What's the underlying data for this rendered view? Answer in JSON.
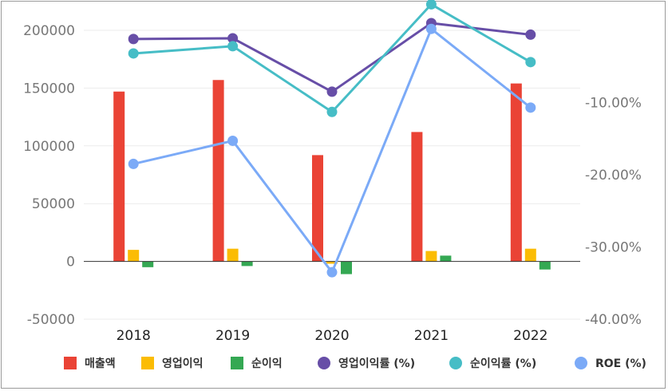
{
  "chart_data": {
    "type": "bar",
    "categories": [
      "2018",
      "2019",
      "2020",
      "2021",
      "2022"
    ],
    "left_axis": {
      "ticks": [
        200000,
        150000,
        100000,
        50000,
        0,
        -50000
      ],
      "ylim": [
        -50000,
        200000
      ]
    },
    "right_axis": {
      "ticks": [
        "-10.00%",
        "-20.00%",
        "-30.00%",
        "-40.00%"
      ],
      "tick_values": [
        -10,
        -20,
        -30,
        -40
      ],
      "ylim": [
        -40,
        0
      ]
    },
    "bar_series": [
      {
        "name": "매출액",
        "color": "#ea4335",
        "values": [
          147000,
          157000,
          92000,
          112000,
          154000
        ]
      },
      {
        "name": "영업이익",
        "color": "#fbbc04",
        "values": [
          10000,
          11000,
          -2000,
          9000,
          11000
        ]
      },
      {
        "name": "순이익",
        "color": "#34a853",
        "values": [
          -5000,
          -4000,
          -11000,
          5000,
          -7000
        ]
      }
    ],
    "line_series": [
      {
        "name": "영업이익률 (%)",
        "color": "#674ea7",
        "axis": "right",
        "values": [
          -1.2,
          -1.1,
          -8.5,
          1.0,
          -0.6
        ]
      },
      {
        "name": "순이익률 (%)",
        "color": "#46bdc6",
        "axis": "right",
        "values": [
          -3.2,
          -2.2,
          -11.3,
          3.6,
          -4.4
        ]
      },
      {
        "name": "ROE (%)",
        "color": "#7baaf7",
        "axis": "right",
        "values": [
          -18.5,
          -15.3,
          -33.5,
          0.2,
          -10.7
        ]
      }
    ],
    "grid": true,
    "legend_position": "bottom"
  }
}
